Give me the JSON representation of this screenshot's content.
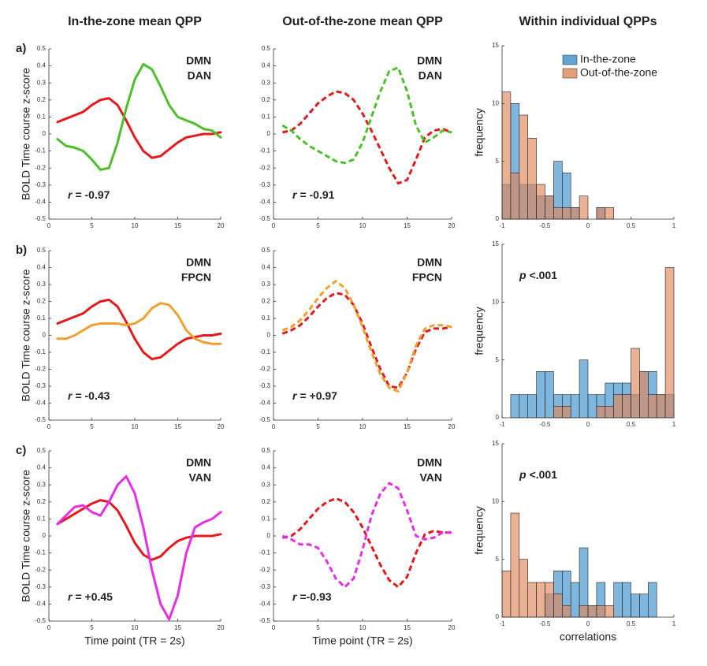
{
  "chart_data": [
    {
      "type": "line",
      "title": "In-the-zone mean QPP",
      "panel_label": "a)",
      "ylabel": "BOLD Time course z-score",
      "x": [
        1,
        2,
        3,
        4,
        5,
        6,
        7,
        8,
        9,
        10,
        11,
        12,
        13,
        14,
        15,
        16,
        17,
        18,
        19,
        20
      ],
      "series": [
        {
          "name": "DMN",
          "color": "#e31a1c",
          "values": [
            0.07,
            0.09,
            0.11,
            0.13,
            0.17,
            0.2,
            0.21,
            0.17,
            0.08,
            -0.02,
            -0.1,
            -0.14,
            -0.13,
            -0.09,
            -0.05,
            -0.02,
            -0.01,
            0,
            0,
            0.01
          ]
        },
        {
          "name": "DAN",
          "color": "#4dbf2a",
          "values": [
            -0.03,
            -0.07,
            -0.08,
            -0.1,
            -0.15,
            -0.21,
            -0.2,
            -0.05,
            0.15,
            0.32,
            0.41,
            0.38,
            0.28,
            0.17,
            0.1,
            0.08,
            0.06,
            0.03,
            0.02,
            -0.02
          ]
        }
      ],
      "annotation_symbol": "r",
      "annotation": "= -0.97",
      "dashed": false,
      "xlim": [
        0,
        20
      ],
      "xticks": [
        0,
        5,
        10,
        15,
        20
      ],
      "ylim": [
        -0.5,
        0.5
      ],
      "yticks": [
        -0.5,
        -0.4,
        -0.3,
        -0.2,
        -0.1,
        0,
        0.1,
        0.2,
        0.3,
        0.4,
        0.5
      ]
    },
    {
      "type": "line",
      "title": "Out-of-the-zone mean QPP",
      "x": [
        1,
        2,
        3,
        4,
        5,
        6,
        7,
        8,
        9,
        10,
        11,
        12,
        13,
        14,
        15,
        16,
        17,
        18,
        19,
        20
      ],
      "series": [
        {
          "name": "DMN",
          "color": "#e31a1c",
          "values": [
            0.01,
            0.02,
            0.06,
            0.12,
            0.18,
            0.22,
            0.25,
            0.24,
            0.2,
            0.12,
            0.02,
            -0.09,
            -0.2,
            -0.29,
            -0.27,
            -0.15,
            -0.02,
            0.02,
            0.03,
            0.01
          ]
        },
        {
          "name": "DAN",
          "color": "#4dbf2a",
          "values": [
            0.05,
            0.02,
            -0.03,
            -0.07,
            -0.1,
            -0.13,
            -0.16,
            -0.17,
            -0.15,
            -0.05,
            0.1,
            0.25,
            0.37,
            0.39,
            0.25,
            0.05,
            -0.05,
            -0.02,
            0.02,
            0.01
          ]
        }
      ],
      "annotation_symbol": "r",
      "annotation": "=  -0.91",
      "dashed": true,
      "xlim": [
        0,
        20
      ],
      "xticks": [
        0,
        5,
        10,
        15,
        20
      ],
      "ylim": [
        -0.5,
        0.5
      ],
      "yticks": [
        -0.5,
        -0.4,
        -0.3,
        -0.2,
        -0.1,
        0,
        0.1,
        0.2,
        0.3,
        0.4,
        0.5
      ]
    },
    {
      "type": "histogram",
      "title": "Within individual QPPs",
      "ylabel": "frequency",
      "bins": [
        -1,
        -0.9,
        -0.8,
        -0.7,
        -0.6,
        -0.5,
        -0.4,
        -0.3,
        -0.2,
        -0.1,
        0,
        0.1,
        0.2,
        0.3,
        0.4,
        0.5,
        0.6,
        0.7,
        0.8,
        0.9,
        1
      ],
      "series": [
        {
          "name": "In-the-zone",
          "color": "#3a8fcb",
          "values": [
            3,
            10,
            3,
            3,
            2,
            2,
            5,
            4,
            1,
            0,
            0,
            1,
            0,
            0,
            0,
            0,
            0,
            0,
            0,
            0
          ]
        },
        {
          "name": "Out-of-the-zone",
          "color": "#e0875a",
          "values": [
            11,
            4,
            9,
            7,
            3,
            2,
            1,
            1,
            1,
            2,
            0,
            1,
            1,
            0,
            0,
            0,
            0,
            0,
            0,
            0
          ]
        }
      ],
      "xlim": [
        -1,
        1
      ],
      "xticks": [
        -1,
        -0.5,
        0,
        0.5,
        1
      ],
      "ylim": [
        0,
        15
      ],
      "yticks": [
        0,
        5,
        10,
        15
      ]
    },
    {
      "type": "line",
      "panel_label": "b)",
      "ylabel": "BOLD Time course z-score",
      "x": [
        1,
        2,
        3,
        4,
        5,
        6,
        7,
        8,
        9,
        10,
        11,
        12,
        13,
        14,
        15,
        16,
        17,
        18,
        19,
        20
      ],
      "series": [
        {
          "name": "DMN",
          "color": "#e31a1c",
          "values": [
            0.07,
            0.09,
            0.11,
            0.13,
            0.17,
            0.2,
            0.21,
            0.17,
            0.08,
            -0.02,
            -0.1,
            -0.14,
            -0.13,
            -0.09,
            -0.05,
            -0.02,
            -0.01,
            0,
            0,
            0.01
          ]
        },
        {
          "name": "FPCN",
          "color": "#f0a030",
          "values": [
            -0.02,
            -0.02,
            0,
            0.03,
            0.06,
            0.07,
            0.07,
            0.07,
            0.06,
            0.07,
            0.1,
            0.16,
            0.19,
            0.18,
            0.12,
            0.03,
            -0.02,
            -0.04,
            -0.05,
            -0.05
          ]
        }
      ],
      "annotation_symbol": "r",
      "annotation": "= -0.43",
      "dashed": false,
      "xlim": [
        0,
        20
      ],
      "xticks": [
        0,
        5,
        10,
        15,
        20
      ],
      "ylim": [
        -0.5,
        0.5
      ],
      "yticks": [
        -0.5,
        -0.4,
        -0.3,
        -0.2,
        -0.1,
        0,
        0.1,
        0.2,
        0.3,
        0.4,
        0.5
      ]
    },
    {
      "type": "line",
      "x": [
        1,
        2,
        3,
        4,
        5,
        6,
        7,
        8,
        9,
        10,
        11,
        12,
        13,
        14,
        15,
        16,
        17,
        18,
        19,
        20
      ],
      "series": [
        {
          "name": "DMN",
          "color": "#e31a1c",
          "values": [
            0.01,
            0.03,
            0.06,
            0.11,
            0.17,
            0.22,
            0.25,
            0.24,
            0.18,
            0.07,
            -0.07,
            -0.2,
            -0.3,
            -0.31,
            -0.22,
            -0.08,
            0.02,
            0.04,
            0.04,
            0.05
          ]
        },
        {
          "name": "FPCN",
          "color": "#f0a030",
          "values": [
            0.03,
            0.05,
            0.09,
            0.15,
            0.22,
            0.28,
            0.32,
            0.28,
            0.18,
            0.05,
            -0.1,
            -0.23,
            -0.31,
            -0.33,
            -0.22,
            -0.06,
            0.04,
            0.06,
            0.06,
            0.05
          ]
        }
      ],
      "annotation_symbol": "r",
      "annotation": "= +0.97",
      "dashed": true,
      "xlim": [
        0,
        20
      ],
      "xticks": [
        0,
        5,
        10,
        15,
        20
      ],
      "ylim": [
        -0.5,
        0.5
      ],
      "yticks": [
        -0.5,
        -0.4,
        -0.3,
        -0.2,
        -0.1,
        0,
        0.1,
        0.2,
        0.3,
        0.4,
        0.5
      ]
    },
    {
      "type": "histogram",
      "ylabel": "frequency",
      "annotation_symbol": "p",
      "annotation": "<.001",
      "bins": [
        -1,
        -0.9,
        -0.8,
        -0.7,
        -0.6,
        -0.5,
        -0.4,
        -0.3,
        -0.2,
        -0.1,
        0,
        0.1,
        0.2,
        0.3,
        0.4,
        0.5,
        0.6,
        0.7,
        0.8,
        0.9,
        1
      ],
      "series": [
        {
          "color": "#3a8fcb",
          "values": [
            0,
            2,
            2,
            2,
            4,
            4,
            2,
            2,
            2,
            5,
            2,
            2,
            3,
            3,
            3,
            2,
            4,
            4,
            2,
            2
          ]
        },
        {
          "color": "#e0875a",
          "values": [
            0,
            0,
            0,
            0,
            0,
            0,
            1,
            1,
            0,
            0,
            0,
            1,
            1,
            2,
            2,
            6,
            4,
            2,
            2,
            13
          ]
        }
      ],
      "xlim": [
        -1,
        1
      ],
      "xticks": [
        -1,
        -0.5,
        0,
        0.5,
        1
      ],
      "ylim": [
        0,
        15
      ],
      "yticks": [
        0,
        5,
        10,
        15
      ]
    },
    {
      "type": "line",
      "panel_label": "c)",
      "ylabel": "BOLD Time course z-score",
      "xlabel": "Time point (TR = 2s)",
      "x": [
        1,
        2,
        3,
        4,
        5,
        6,
        7,
        8,
        9,
        10,
        11,
        12,
        13,
        14,
        15,
        16,
        17,
        18,
        19,
        20
      ],
      "series": [
        {
          "name": "DMN",
          "color": "#e31a1c",
          "values": [
            0.07,
            0.1,
            0.13,
            0.16,
            0.19,
            0.21,
            0.2,
            0.15,
            0.06,
            -0.04,
            -0.11,
            -0.14,
            -0.12,
            -0.07,
            -0.03,
            -0.01,
            0,
            0,
            0,
            0.01
          ]
        },
        {
          "name": "VAN",
          "color": "#e62ee6",
          "values": [
            0.07,
            0.12,
            0.17,
            0.18,
            0.14,
            0.12,
            0.2,
            0.3,
            0.35,
            0.25,
            0.05,
            -0.2,
            -0.4,
            -0.49,
            -0.35,
            -0.1,
            0.05,
            0.08,
            0.1,
            0.14
          ]
        }
      ],
      "annotation_symbol": "r",
      "annotation": "= +0.45",
      "dashed": false,
      "xlim": [
        0,
        20
      ],
      "xticks": [
        0,
        5,
        10,
        15,
        20
      ],
      "ylim": [
        -0.5,
        0.5
      ],
      "yticks": [
        -0.5,
        -0.4,
        -0.3,
        -0.2,
        -0.1,
        0,
        0.1,
        0.2,
        0.3,
        0.4,
        0.5
      ]
    },
    {
      "type": "line",
      "xlabel": "Time point (TR = 2s)",
      "x": [
        1,
        2,
        3,
        4,
        5,
        6,
        7,
        8,
        9,
        10,
        11,
        12,
        13,
        14,
        15,
        16,
        17,
        18,
        19,
        20
      ],
      "series": [
        {
          "name": "DMN",
          "color": "#e31a1c",
          "values": [
            -0.01,
            0,
            0.04,
            0.1,
            0.16,
            0.2,
            0.22,
            0.2,
            0.14,
            0.05,
            -0.06,
            -0.17,
            -0.26,
            -0.3,
            -0.24,
            -0.1,
            0.01,
            0.03,
            0.02,
            0.02
          ]
        },
        {
          "name": "VAN",
          "color": "#e62ee6",
          "values": [
            0,
            -0.02,
            -0.05,
            -0.05,
            -0.07,
            -0.15,
            -0.25,
            -0.3,
            -0.25,
            -0.08,
            0.12,
            0.25,
            0.31,
            0.28,
            0.15,
            0,
            -0.02,
            -0.01,
            0.02,
            0.02
          ]
        }
      ],
      "annotation_symbol": "r",
      "annotation": "=-0.93",
      "dashed": true,
      "xlim": [
        0,
        20
      ],
      "xticks": [
        0,
        5,
        10,
        15,
        20
      ],
      "ylim": [
        -0.5,
        0.5
      ],
      "yticks": [
        -0.5,
        -0.4,
        -0.3,
        -0.2,
        -0.1,
        0,
        0.1,
        0.2,
        0.3,
        0.4,
        0.5
      ]
    },
    {
      "type": "histogram",
      "ylabel": "frequency",
      "xlabel": "correlations",
      "annotation_symbol": "p",
      "annotation": "<.001",
      "bins": [
        -1,
        -0.9,
        -0.8,
        -0.7,
        -0.6,
        -0.5,
        -0.4,
        -0.3,
        -0.2,
        -0.1,
        0,
        0.1,
        0.2,
        0.3,
        0.4,
        0.5,
        0.6,
        0.7,
        0.8,
        0.9,
        1
      ],
      "series": [
        {
          "color": "#3a8fcb",
          "values": [
            0,
            0,
            0,
            0,
            0,
            2,
            4,
            4,
            3,
            6,
            1,
            3,
            0,
            3,
            3,
            2,
            2,
            3,
            0,
            0
          ]
        },
        {
          "color": "#e0875a",
          "values": [
            4,
            9,
            5,
            3,
            3,
            3,
            2,
            1,
            0,
            1,
            1,
            1,
            1,
            0,
            0,
            0,
            0,
            0,
            0,
            0
          ]
        }
      ],
      "xlim": [
        -1,
        1
      ],
      "xticks": [
        -1,
        -0.5,
        0,
        0.5,
        1
      ],
      "ylim": [
        0,
        15
      ],
      "yticks": [
        0,
        5,
        10,
        15
      ]
    }
  ]
}
